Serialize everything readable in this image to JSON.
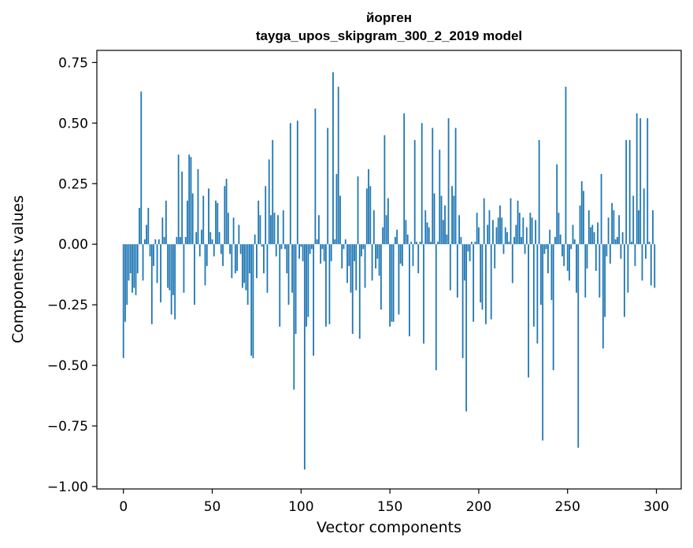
{
  "chart_data": {
    "type": "bar",
    "title": "йорген",
    "subtitle": "tayga_upos_skipgram_300_2_2019 model",
    "xlabel": "Vector components",
    "ylabel": "Components values",
    "xlim": [
      -14.95,
      313.95
    ],
    "ylim": [
      -1.01,
      0.8
    ],
    "xticks": [
      0,
      50,
      100,
      150,
      200,
      250,
      300
    ],
    "yticks": [
      0.75,
      0.5,
      0.25,
      0.0,
      -0.25,
      -0.5,
      -0.75,
      -1.0
    ],
    "ytick_labels": [
      "0.75",
      "0.50",
      "0.25",
      "0.00",
      "−0.25",
      "−0.50",
      "−0.75",
      "−1.00"
    ],
    "grid": false,
    "bar_color": "#1f77b4",
    "x": [
      0,
      1,
      2,
      3,
      4,
      5,
      6,
      7,
      8,
      9,
      10,
      11,
      12,
      13,
      14,
      15,
      16,
      17,
      18,
      19,
      20,
      21,
      22,
      23,
      24,
      25,
      26,
      27,
      28,
      29,
      30,
      31,
      32,
      33,
      34,
      35,
      36,
      37,
      38,
      39,
      40,
      41,
      42,
      43,
      44,
      45,
      46,
      47,
      48,
      49,
      50,
      51,
      52,
      53,
      54,
      55,
      56,
      57,
      58,
      59,
      60,
      61,
      62,
      63,
      64,
      65,
      66,
      67,
      68,
      69,
      70,
      71,
      72,
      73,
      74,
      75,
      76,
      77,
      78,
      79,
      80,
      81,
      82,
      83,
      84,
      85,
      86,
      87,
      88,
      89,
      90,
      91,
      92,
      93,
      94,
      95,
      96,
      97,
      98,
      99,
      100,
      101,
      102,
      103,
      104,
      105,
      106,
      107,
      108,
      109,
      110,
      111,
      112,
      113,
      114,
      115,
      116,
      117,
      118,
      119,
      120,
      121,
      122,
      123,
      124,
      125,
      126,
      127,
      128,
      129,
      130,
      131,
      132,
      133,
      134,
      135,
      136,
      137,
      138,
      139,
      140,
      141,
      142,
      143,
      144,
      145,
      146,
      147,
      148,
      149,
      150,
      151,
      152,
      153,
      154,
      155,
      156,
      157,
      158,
      159,
      160,
      161,
      162,
      163,
      164,
      165,
      166,
      167,
      168,
      169,
      170,
      171,
      172,
      173,
      174,
      175,
      176,
      177,
      178,
      179,
      180,
      181,
      182,
      183,
      184,
      185,
      186,
      187,
      188,
      189,
      190,
      191,
      192,
      193,
      194,
      195,
      196,
      197,
      198,
      199,
      200,
      201,
      202,
      203,
      204,
      205,
      206,
      207,
      208,
      209,
      210,
      211,
      212,
      213,
      214,
      215,
      216,
      217,
      218,
      219,
      220,
      221,
      222,
      223,
      224,
      225,
      226,
      227,
      228,
      229,
      230,
      231,
      232,
      233,
      234,
      235,
      236,
      237,
      238,
      239,
      240,
      241,
      242,
      243,
      244,
      245,
      246,
      247,
      248,
      249,
      250,
      251,
      252,
      253,
      254,
      255,
      256,
      257,
      258,
      259,
      260,
      261,
      262,
      263,
      264,
      265,
      266,
      267,
      268,
      269,
      270,
      271,
      272,
      273,
      274,
      275,
      276,
      277,
      278,
      279,
      280,
      281,
      282,
      283,
      284,
      285,
      286,
      287,
      288,
      289,
      290,
      291,
      292,
      293,
      294,
      295,
      296,
      297,
      298,
      299
    ],
    "values": [
      -0.47,
      -0.32,
      -0.25,
      -0.15,
      -0.12,
      -0.2,
      -0.18,
      -0.21,
      -0.12,
      0.15,
      0.63,
      -0.15,
      0.02,
      0.08,
      0.15,
      -0.05,
      -0.33,
      -0.09,
      0.02,
      -0.16,
      0.02,
      -0.24,
      0.11,
      0.03,
      0.18,
      -0.18,
      -0.19,
      -0.29,
      -0.21,
      -0.31,
      0.03,
      0.37,
      0.03,
      0.3,
      -0.2,
      0.03,
      0.18,
      0.37,
      0.36,
      0.21,
      -0.25,
      0.05,
      0.31,
      -0.05,
      0.06,
      0.2,
      -0.17,
      -0.09,
      0.23,
      0.05,
      0.02,
      -0.05,
      0.18,
      0.17,
      0.05,
      -0.04,
      -0.09,
      0.24,
      0.27,
      0.13,
      -0.04,
      -0.14,
      0.11,
      -0.12,
      -0.11,
      0.08,
      -0.04,
      -0.18,
      -0.16,
      -0.19,
      -0.25,
      -0.12,
      -0.46,
      -0.47,
      0.04,
      -0.14,
      0.18,
      0.12,
      -0.01,
      -0.12,
      0.24,
      -0.2,
      0.35,
      0.12,
      0.43,
      0.13,
      -0.05,
      0.12,
      -0.34,
      -0.02,
      0.14,
      -0.02,
      -0.12,
      -0.25,
      0.5,
      -0.2,
      -0.6,
      -0.37,
      0.51,
      -0.06,
      -0.01,
      -0.07,
      -0.93,
      -0.34,
      -0.3,
      -0.04,
      -0.02,
      -0.46,
      0.56,
      0.02,
      0.12,
      -0.08,
      -0.02,
      -0.07,
      -0.34,
      0.48,
      -0.33,
      -0.07,
      0.71,
      0.02,
      0.29,
      0.65,
      0.2,
      -0.1,
      -0.02,
      0.02,
      -0.16,
      -0.09,
      -0.2,
      -0.37,
      -0.07,
      -0.19,
      0.28,
      -0.39,
      -0.05,
      -0.02,
      -0.18,
      0.23,
      0.31,
      0.24,
      -0.15,
      0.14,
      -0.1,
      -0.06,
      -0.13,
      -0.27,
      0.07,
      0.45,
      0.12,
      0.19,
      -0.34,
      -0.32,
      -0.32,
      0.03,
      0.06,
      -0.29,
      -0.08,
      -0.09,
      0.54,
      0.1,
      0.04,
      -0.38,
      0.01,
      -0.09,
      0.43,
      0.01,
      -0.12,
      0.01,
      0.5,
      -0.41,
      0.14,
      0.09,
      0.07,
      0.01,
      0.48,
      0.21,
      -0.52,
      0.01,
      0.39,
      0.2,
      0.1,
      0.16,
      0.04,
      0.52,
      -0.19,
      0.24,
      0.2,
      0.48,
      -0.22,
      0.12,
      0.03,
      -0.47,
      -0.15,
      -0.69,
      -0.03,
      -0.07,
      0.01,
      -0.32,
      0.01,
      0.13,
      0.07,
      -0.24,
      -0.27,
      0.19,
      -0.33,
      0.08,
      0.14,
      -0.31,
      0.1,
      -0.1,
      0.07,
      0.11,
      0.16,
      0.11,
      -0.04,
      0.07,
      0.05,
      0.01,
      0.19,
      -0.16,
      0.03,
      0.08,
      0.18,
      0.13,
      0.03,
      0.11,
      -0.04,
      0.07,
      -0.55,
      0.13,
      0.11,
      -0.34,
      0.1,
      -0.41,
      0.43,
      -0.25,
      -0.81,
      -0.04,
      -0.02,
      -0.12,
      0.06,
      -0.23,
      -0.52,
      0.03,
      0.33,
      0.13,
      0.04,
      -0.05,
      -0.09,
      0.65,
      -0.11,
      -0.15,
      -0.02,
      0.08,
      0.02,
      -0.2,
      -0.84,
      0.16,
      0.26,
      0.22,
      -0.22,
      -0.1,
      0.14,
      0.07,
      0.08,
      0.05,
      -0.11,
      0.09,
      -0.22,
      0.29,
      -0.43,
      -0.3,
      -0.05,
      0.11,
      -0.08,
      0.17,
      0.14,
      0.02,
      0.03,
      0.12,
      -0.06,
      0.05,
      -0.3,
      0.43,
      -0.2,
      0.43,
      0.01,
      0.2,
      -0.09,
      0.54,
      0.14,
      0.52,
      -0.15,
      0.23,
      -0.06,
      0.52,
      0.01,
      -0.17,
      0.14,
      -0.18
    ]
  }
}
